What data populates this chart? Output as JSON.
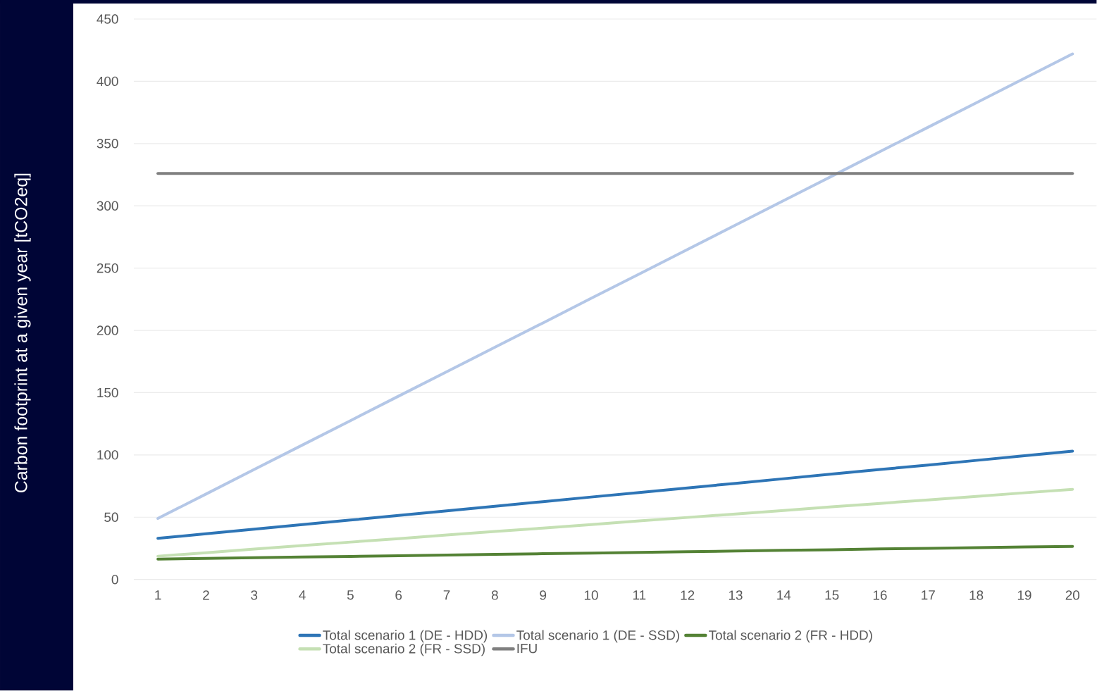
{
  "chart_data": {
    "type": "line",
    "ylabel": "Carbon footprint at a given year [tCO2eq]",
    "categories": [
      "1",
      "2",
      "3",
      "4",
      "5",
      "6",
      "7",
      "8",
      "9",
      "10",
      "11",
      "12",
      "13",
      "14",
      "15",
      "16",
      "17",
      "18",
      "19",
      "20"
    ],
    "series": [
      {
        "name": "Total scenario 1 (DE - HDD)",
        "color": "#2e75b6",
        "values": [
          33,
          36.7,
          40.4,
          44.1,
          47.7,
          51.4,
          55.1,
          58.8,
          62.5,
          66.2,
          69.8,
          73.5,
          77.2,
          80.9,
          84.6,
          88.3,
          91.9,
          95.6,
          99.3,
          103
        ]
      },
      {
        "name": "Total scenario 1 (DE - SSD)",
        "color": "#b4c7e7",
        "values": [
          49,
          68.6,
          88.3,
          107.9,
          127.5,
          147.2,
          166.8,
          186.4,
          206,
          225.7,
          245.3,
          264.9,
          284.6,
          304.2,
          323.8,
          343.5,
          363.1,
          382.7,
          402.3,
          422
        ]
      },
      {
        "name": "Total scenario 2 (FR - HDD)",
        "color": "#548235",
        "values": [
          16.4,
          16.9,
          17.5,
          18,
          18.5,
          19.1,
          19.6,
          20.2,
          20.7,
          21.2,
          21.8,
          22.3,
          22.8,
          23.4,
          23.9,
          24.5,
          25,
          25.5,
          26.1,
          26.6
        ]
      },
      {
        "name": "Total scenario 2 (FR - SSD)",
        "color": "#c5e0b4",
        "values": [
          18.7,
          21.5,
          24.4,
          27.2,
          30,
          32.8,
          35.7,
          38.5,
          41.3,
          44.1,
          47,
          49.8,
          52.6,
          55.4,
          58.3,
          61.1,
          63.9,
          66.7,
          69.6,
          72.4
        ]
      },
      {
        "name": "IFU",
        "color": "#7f7f7f",
        "values": [
          326,
          326,
          326,
          326,
          326,
          326,
          326,
          326,
          326,
          326,
          326,
          326,
          326,
          326,
          326,
          326,
          326,
          326,
          326,
          326
        ]
      }
    ],
    "ylim": [
      0,
      450
    ],
    "yticks": [
      0,
      50,
      100,
      150,
      200,
      250,
      300,
      350,
      400,
      450
    ],
    "grid": "y",
    "legend": "bottom",
    "line_style": "solid",
    "marker": "none"
  }
}
